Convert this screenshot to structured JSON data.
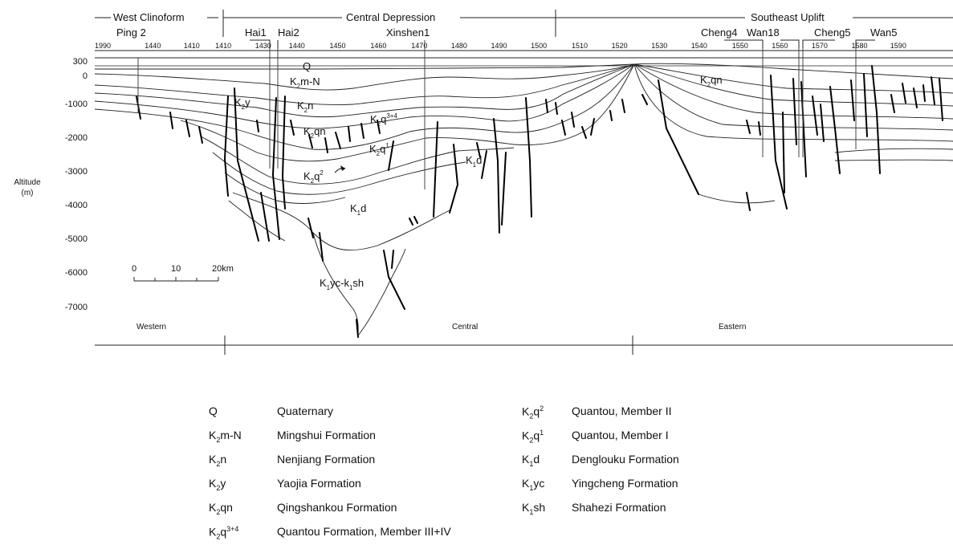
{
  "regions": {
    "west": "West Clinoform",
    "central": "Central Depression",
    "southeast": "Southeast Uplift"
  },
  "wells": [
    "Ping 2",
    "Hai1",
    "Hai2",
    "Xinshen1",
    "Cheng4",
    "Wan18",
    "Cheng5",
    "Wan5"
  ],
  "trace_numbers": [
    "1990",
    "1440",
    "1410",
    "1410",
    "1430",
    "1440",
    "1450",
    "1460",
    "1470",
    "1480",
    "1490",
    "1500",
    "1510",
    "1520",
    "1530",
    "1540",
    "1550",
    "1560",
    "1570",
    "1580",
    "1590"
  ],
  "y_axis": {
    "title": "Altitude",
    "unit": "(m)",
    "ticks": [
      "300",
      "0",
      "-1000",
      "-2000",
      "-3000",
      "-4000",
      "-5000",
      "-6000",
      "-7000"
    ]
  },
  "scale_bar": {
    "ticks": [
      "0",
      "10",
      "20km"
    ]
  },
  "zones": [
    "Western",
    "Central",
    "Eastern"
  ],
  "formation_labels": {
    "q": "Q",
    "k2mn": {
      "main": "K",
      "sub": "2",
      "rest": "m-N"
    },
    "k2y": {
      "main": "K",
      "sub": "2",
      "rest": "y"
    },
    "k2n": {
      "main": "K",
      "sub": "2",
      "rest": "n"
    },
    "k2qn": {
      "main": "K",
      "sub": "2",
      "rest": "qn"
    },
    "k2q34": {
      "main": "K",
      "sub": "2",
      "rest": "q",
      "sup": "3+4"
    },
    "k2q1": {
      "main": "K",
      "sub": "2",
      "rest": "q",
      "sup": "1"
    },
    "k2q2": {
      "main": "K",
      "sub": "2",
      "rest": "q",
      "sup": "2"
    },
    "k1d_a": {
      "main": "K",
      "sub": "1",
      "rest": "d"
    },
    "k1d_b": {
      "main": "K",
      "sub": "1",
      "rest": "d"
    },
    "k1yc": {
      "main": "K",
      "sub": "1",
      "rest": "yc-k",
      "sub2": "1",
      "rest2": "sh"
    },
    "k2qn_east": {
      "main": "K",
      "sub": "2",
      "rest": "qn"
    }
  },
  "legend": [
    {
      "sym": "Q",
      "sub": "",
      "rest": "",
      "sup": "",
      "name": "Quaternary"
    },
    {
      "sym": "K",
      "sub": "2",
      "rest": "m-N",
      "sup": "",
      "name": "Mingshui Formation"
    },
    {
      "sym": "K",
      "sub": "2",
      "rest": "n",
      "sup": "",
      "name": "Nenjiang Formation"
    },
    {
      "sym": "K",
      "sub": "2",
      "rest": "y",
      "sup": "",
      "name": "Yaojia Formation"
    },
    {
      "sym": "K",
      "sub": "2",
      "rest": "qn",
      "sup": "",
      "name": "Qingshankou Formation"
    },
    {
      "sym": "K",
      "sub": "2",
      "rest": "q",
      "sup": "3+4",
      "name": "Quantou Formation, Member III+IV"
    },
    {
      "sym": "K",
      "sub": "2",
      "rest": "q",
      "sup": "2",
      "name": "Quantou, Member II"
    },
    {
      "sym": "K",
      "sub": "2",
      "rest": "q",
      "sup": "1",
      "name": "Quantou, Member I"
    },
    {
      "sym": "K",
      "sub": "1",
      "rest": "d",
      "sup": "",
      "name": "Denglouku Formation"
    },
    {
      "sym": "K",
      "sub": "1",
      "rest": "yc",
      "sup": "",
      "name": "Yingcheng Formation"
    },
    {
      "sym": "K",
      "sub": "1",
      "rest": "sh",
      "sup": "",
      "name": "Shahezi Formation"
    }
  ]
}
